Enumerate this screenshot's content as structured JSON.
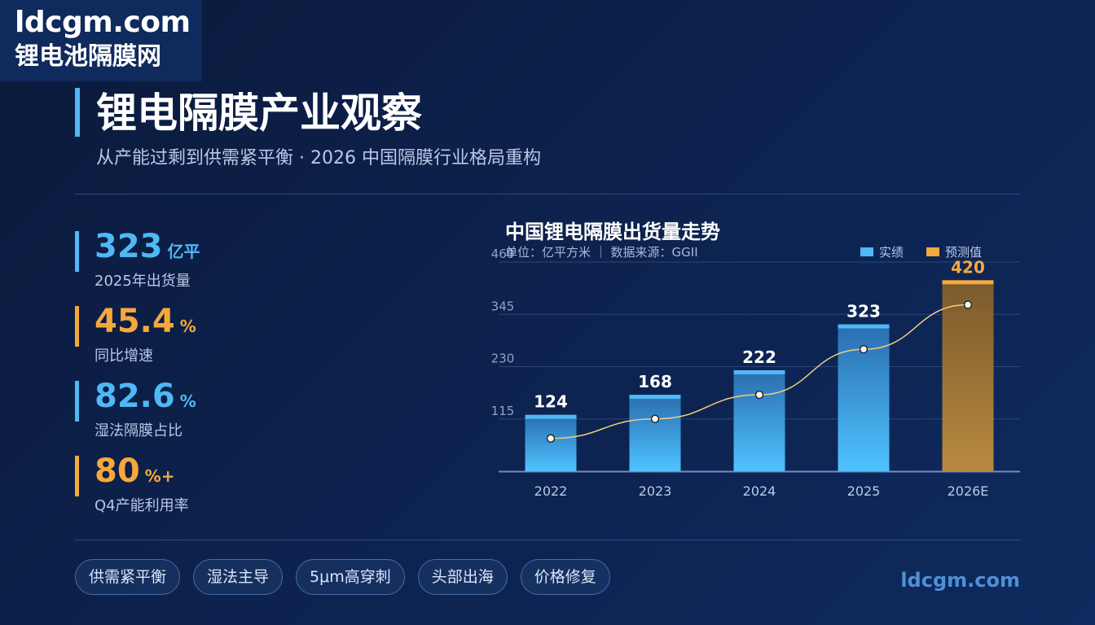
{
  "brand": {
    "domain": "ldcgm.com",
    "name": "锂电池隔膜网"
  },
  "header": {
    "title": "锂电隔膜产业观察",
    "subtitle": "从产能过剩到供需紧平衡 · 2026 中国隔膜行业格局重构"
  },
  "stats": [
    {
      "value": "323",
      "unit": "亿平",
      "label": "2025年出货量",
      "color": "#4fb8f5"
    },
    {
      "value": "45.4",
      "unit": "%",
      "label": "同比增速",
      "color": "#f5a83c"
    },
    {
      "value": "82.6",
      "unit": "%",
      "label": "湿法隔膜占比",
      "color": "#4fb8f5"
    },
    {
      "value": "80",
      "unit": "%+",
      "label": "Q4产能利用率",
      "color": "#f5a83c"
    }
  ],
  "chart_data": {
    "type": "bar",
    "title": "中国锂电隔膜出货量走势",
    "subtitle": "单位：亿平方米 ｜ 数据来源：GGII",
    "categories": [
      "2022",
      "2023",
      "2024",
      "2025",
      "2026E"
    ],
    "series": [
      {
        "name": "实绩",
        "values": [
          124,
          168,
          222,
          323,
          null
        ],
        "color": "#4fb8f5"
      },
      {
        "name": "预测值",
        "values": [
          null,
          null,
          null,
          null,
          420
        ],
        "color": "#f5a83c"
      }
    ],
    "value_labels": [
      "124",
      "168",
      "222",
      "323",
      "420"
    ],
    "trend_line": [
      72,
      115,
      168,
      268,
      366
    ],
    "y_ticks": [
      "115",
      "230",
      "345",
      "460"
    ],
    "ylim": [
      0,
      460
    ],
    "grid": true,
    "legend_position": "top-right"
  },
  "tags": [
    "供需紧平衡",
    "湿法主导",
    "5μm高穿刺",
    "头部出海",
    "价格修复"
  ],
  "footer": {
    "domain": "ldcgm.com"
  }
}
